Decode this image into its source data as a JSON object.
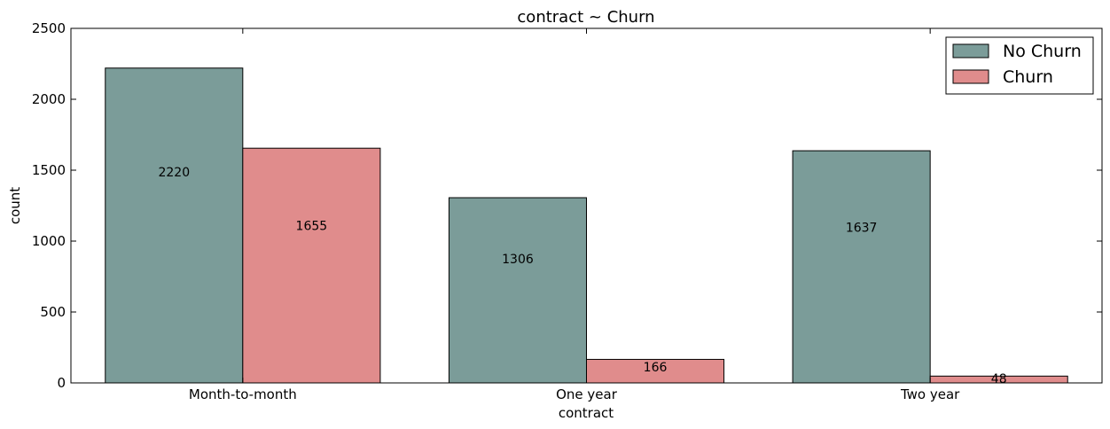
{
  "chart_data": {
    "type": "bar",
    "title": "contract ~ Churn",
    "xlabel": "contract",
    "ylabel": "count",
    "categories": [
      "Month-to-month",
      "One year",
      "Two year"
    ],
    "series": [
      {
        "name": "No Churn",
        "values": [
          2220,
          1306,
          1637
        ],
        "color": "#7b9c99"
      },
      {
        "name": "Churn",
        "values": [
          1655,
          166,
          48
        ],
        "color": "#e08c8c"
      }
    ],
    "data_labels": [
      [
        "2220",
        "1306",
        "1637"
      ],
      [
        "1655",
        "166",
        "48"
      ]
    ],
    "ylim": [
      0,
      2500
    ],
    "yticks": [
      "0",
      "500",
      "1000",
      "1500",
      "2000",
      "2500"
    ],
    "grid": false,
    "legend_position": "top-right"
  }
}
